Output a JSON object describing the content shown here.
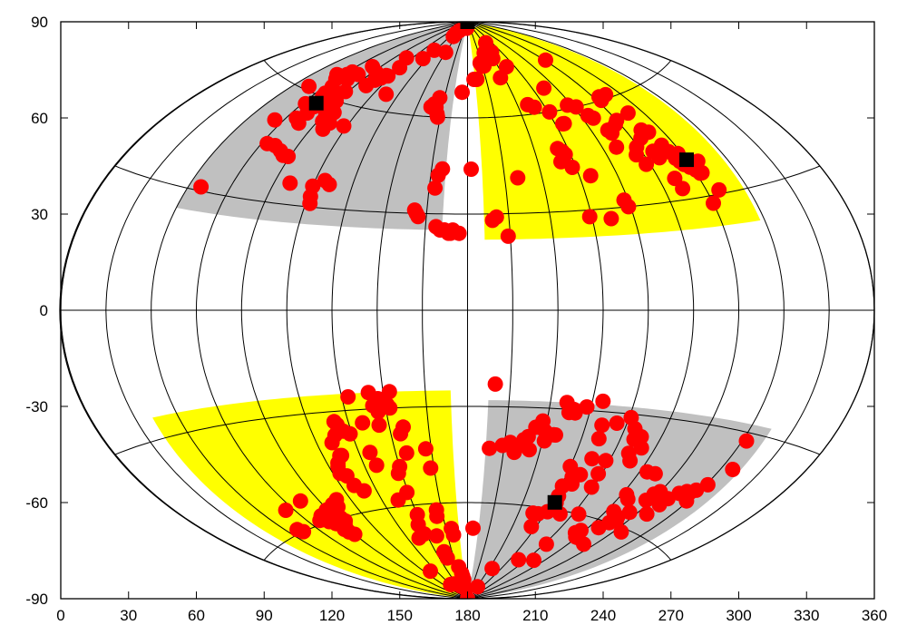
{
  "chart_data": {
    "type": "scatter",
    "title": "",
    "xlabel": "",
    "ylabel": "",
    "projection": "aitoff-hammer-ellipse",
    "xlim": [
      0,
      360
    ],
    "ylim": [
      -90,
      90
    ],
    "xticks": [
      "0",
      "30",
      "60",
      "90",
      "120",
      "150",
      "180",
      "210",
      "240",
      "270",
      "300",
      "330",
      "360"
    ],
    "yticks": [
      "-90",
      "-60",
      "-30",
      "0",
      "30",
      "60",
      "90"
    ],
    "colors": {
      "gray_region": "#c0c0c0",
      "yellow_region": "#ffff00",
      "points": "#ff0000",
      "markers": "#000000",
      "grid": "#000000"
    },
    "regions": [
      {
        "name": "upper-left",
        "color": "gray",
        "lon": [
          40,
          168
        ],
        "lat": [
          25,
          88
        ]
      },
      {
        "name": "upper-right",
        "color": "yellow",
        "lon": [
          188,
          318
        ],
        "lat": [
          22,
          88
        ]
      },
      {
        "name": "lower-left",
        "color": "yellow",
        "lon": [
          28,
          172
        ],
        "lat": [
          -88,
          -25
        ]
      },
      {
        "name": "lower-right",
        "color": "gray",
        "lon": [
          190,
          330
        ],
        "lat": [
          -88,
          -28
        ]
      }
    ],
    "series": [
      {
        "name": "red-points",
        "points": [
          [
            46,
            31
          ],
          [
            50,
            61
          ],
          [
            55,
            51
          ],
          [
            56,
            66
          ],
          [
            58,
            66
          ],
          [
            60,
            65
          ],
          [
            62,
            57
          ],
          [
            63,
            67
          ],
          [
            64,
            68
          ],
          [
            65,
            63
          ],
          [
            66,
            61
          ],
          [
            66,
            53
          ],
          [
            67,
            60
          ],
          [
            68,
            66
          ],
          [
            69,
            57
          ],
          [
            69,
            55
          ],
          [
            70,
            52
          ],
          [
            71,
            68
          ],
          [
            72,
            62
          ],
          [
            63,
            45
          ],
          [
            68,
            45
          ],
          [
            73,
            44
          ],
          [
            76,
            43
          ],
          [
            79,
            43
          ],
          [
            73,
            71
          ],
          [
            76,
            58
          ],
          [
            78,
            63
          ],
          [
            79,
            60
          ],
          [
            81,
            56
          ],
          [
            83,
            54
          ],
          [
            84,
            55
          ],
          [
            85,
            57
          ],
          [
            87,
            52
          ],
          [
            88,
            54
          ],
          [
            88,
            36
          ],
          [
            83,
            70
          ],
          [
            88,
            66
          ],
          [
            90,
            68
          ],
          [
            93,
            69
          ],
          [
            95,
            70
          ],
          [
            97,
            70
          ],
          [
            93,
            76
          ],
          [
            98,
            54
          ],
          [
            100,
            36
          ],
          [
            101,
            33
          ],
          [
            102,
            31
          ],
          [
            99,
            73
          ],
          [
            105,
            38
          ],
          [
            108,
            37
          ],
          [
            110,
            65
          ],
          [
            114,
            77
          ],
          [
            118,
            80
          ],
          [
            129,
            86
          ],
          [
            130,
            85
          ],
          [
            134,
            87
          ],
          [
            140,
            80
          ],
          [
            151,
            63
          ],
          [
            153,
            64
          ],
          [
            155,
            63
          ],
          [
            156,
            66
          ],
          [
            157,
            61
          ],
          [
            158,
            60
          ],
          [
            154,
            31
          ],
          [
            155,
            30
          ],
          [
            156,
            29
          ],
          [
            163,
            38
          ],
          [
            164,
            42
          ],
          [
            166,
            44
          ],
          [
            165,
            26
          ],
          [
            167,
            25
          ],
          [
            169,
            25
          ],
          [
            171,
            24
          ],
          [
            172,
            24
          ],
          [
            173,
            25
          ],
          [
            176,
            24
          ],
          [
            174,
            88
          ],
          [
            175,
            68
          ],
          [
            182,
            44
          ],
          [
            187,
            72
          ],
          [
            190,
            72
          ],
          [
            192,
            28
          ],
          [
            194,
            29
          ],
          [
            199,
            23
          ],
          [
            198,
            77
          ],
          [
            200,
            76
          ],
          [
            202,
            76
          ],
          [
            207,
            41
          ],
          [
            210,
            80
          ],
          [
            213,
            79
          ],
          [
            216,
            72
          ],
          [
            219,
            78
          ],
          [
            224,
            80
          ],
          [
            226,
            83
          ],
          [
            228,
            63
          ],
          [
            230,
            75
          ],
          [
            232,
            62
          ],
          [
            233,
            45
          ],
          [
            234,
            49
          ],
          [
            236,
            48
          ],
          [
            237,
            47
          ],
          [
            238,
            43
          ],
          [
            239,
            28
          ],
          [
            241,
            60
          ],
          [
            245,
            56
          ],
          [
            246,
            56
          ],
          [
            246,
            40
          ],
          [
            249,
            27
          ],
          [
            250,
            67
          ],
          [
            257,
            61
          ],
          [
            258,
            32
          ],
          [
            259,
            30
          ],
          [
            262,
            60
          ],
          [
            265,
            57
          ],
          [
            267,
            56
          ],
          [
            268,
            47
          ],
          [
            270,
            52
          ],
          [
            271,
            51
          ],
          [
            276,
            44
          ],
          [
            277,
            53
          ],
          [
            278,
            41
          ],
          [
            279,
            46
          ],
          [
            280,
            54
          ],
          [
            281,
            74
          ],
          [
            283,
            60
          ],
          [
            284,
            61
          ],
          [
            285,
            48
          ],
          [
            286,
            44
          ],
          [
            287,
            42
          ],
          [
            288,
            36
          ],
          [
            289,
            50
          ],
          [
            289,
            33
          ],
          [
            290,
            61
          ],
          [
            291,
            55
          ],
          [
            292,
            49
          ],
          [
            293,
            45
          ],
          [
            294,
            43
          ],
          [
            295,
            41
          ],
          [
            296,
            40
          ],
          [
            297,
            39
          ],
          [
            298,
            42
          ],
          [
            299,
            38
          ],
          [
            300,
            28
          ],
          [
            301,
            37
          ],
          [
            302,
            36
          ],
          [
            303,
            36
          ],
          [
            306,
            31
          ],
          [
            305,
            39
          ],
          [
            47,
            -59
          ],
          [
            49,
            -60
          ],
          [
            55,
            -54
          ],
          [
            69,
            -53
          ],
          [
            68,
            -59
          ],
          [
            70,
            -59
          ],
          [
            72,
            -58
          ],
          [
            73,
            -60
          ],
          [
            75,
            -58
          ],
          [
            76,
            -61
          ],
          [
            77,
            -63
          ],
          [
            78,
            -64
          ],
          [
            79,
            -57
          ],
          [
            80,
            -65
          ],
          [
            81,
            -62
          ],
          [
            82,
            -59
          ],
          [
            83,
            -60
          ],
          [
            84,
            -61
          ],
          [
            86,
            -56
          ],
          [
            88,
            -57
          ],
          [
            91,
            -55
          ],
          [
            104,
            -48
          ],
          [
            105,
            -46
          ],
          [
            106,
            -45
          ],
          [
            107,
            -49
          ],
          [
            108,
            -52
          ],
          [
            108,
            -39
          ],
          [
            109,
            -43
          ],
          [
            110,
            -43
          ],
          [
            110,
            -80
          ],
          [
            111,
            -37
          ],
          [
            112,
            -54
          ],
          [
            113,
            -33
          ],
          [
            114,
            -34
          ],
          [
            116,
            -36
          ],
          [
            119,
            -37
          ],
          [
            120,
            -85
          ],
          [
            123,
            -26
          ],
          [
            126,
            -43
          ],
          [
            127,
            -47
          ],
          [
            127,
            -34
          ],
          [
            130,
            -85
          ],
          [
            131,
            -70
          ],
          [
            131,
            -58
          ],
          [
            133,
            -25
          ],
          [
            134,
            -29
          ],
          [
            135,
            -35
          ],
          [
            136,
            -31
          ],
          [
            137,
            -27
          ],
          [
            137,
            -66
          ],
          [
            138,
            -69
          ],
          [
            138,
            -50
          ],
          [
            139,
            -56
          ],
          [
            140,
            -48
          ],
          [
            140,
            -63
          ],
          [
            141,
            -29
          ],
          [
            142,
            -30
          ],
          [
            143,
            -25
          ],
          [
            145,
            -38
          ],
          [
            146,
            -44
          ],
          [
            147,
            -36
          ],
          [
            149,
            -70
          ],
          [
            150,
            -75
          ],
          [
            151,
            -77
          ],
          [
            152,
            -86
          ],
          [
            155,
            -64
          ],
          [
            156,
            -62
          ],
          [
            157,
            -43
          ],
          [
            158,
            -49
          ],
          [
            164,
            -80
          ],
          [
            165,
            -68
          ],
          [
            166,
            -70
          ],
          [
            167,
            -82
          ],
          [
            168,
            -83
          ],
          [
            169,
            -84
          ],
          [
            170,
            -87
          ],
          [
            193,
            -23
          ],
          [
            192,
            -43
          ],
          [
            185,
            -68
          ],
          [
            199,
            -42
          ],
          [
            203,
            -41
          ],
          [
            206,
            -44
          ],
          [
            208,
            -42
          ],
          [
            210,
            -40
          ],
          [
            212,
            -39
          ],
          [
            214,
            -43
          ],
          [
            215,
            -36
          ],
          [
            218,
            -34
          ],
          [
            220,
            -37
          ],
          [
            221,
            -40
          ],
          [
            221,
            -90
          ],
          [
            223,
            -86
          ],
          [
            225,
            -80
          ],
          [
            225,
            -38
          ],
          [
            226,
            -38
          ],
          [
            228,
            -28
          ],
          [
            230,
            -31
          ],
          [
            231,
            -62
          ],
          [
            232,
            -30
          ],
          [
            233,
            -31
          ],
          [
            235,
            -62
          ],
          [
            236,
            -66
          ],
          [
            238,
            -29
          ],
          [
            240,
            -47
          ],
          [
            241,
            -53
          ],
          [
            241,
            -61
          ],
          [
            242,
            -56
          ],
          [
            243,
            -58
          ],
          [
            244,
            -50
          ],
          [
            245,
            -27
          ],
          [
            246,
            -52
          ],
          [
            248,
            -49
          ],
          [
            248,
            -34
          ],
          [
            249,
            -38
          ],
          [
            250,
            -44
          ],
          [
            251,
            -61
          ],
          [
            251,
            -76
          ],
          [
            255,
            -33
          ],
          [
            258,
            -48
          ],
          [
            258,
            -44
          ],
          [
            259,
            -52
          ],
          [
            261,
            -31
          ],
          [
            262,
            -70
          ],
          [
            264,
            -60
          ],
          [
            265,
            -34
          ],
          [
            267,
            -37
          ],
          [
            268,
            -41
          ],
          [
            269,
            -75
          ],
          [
            270,
            -36
          ],
          [
            271,
            -43
          ],
          [
            273,
            -39
          ],
          [
            275,
            -65
          ],
          [
            277,
            -64
          ],
          [
            279,
            -66
          ],
          [
            281,
            -66
          ],
          [
            283,
            -52
          ],
          [
            284,
            -45
          ],
          [
            285,
            -57
          ],
          [
            286,
            -53
          ],
          [
            287,
            -62
          ],
          [
            289,
            -45
          ],
          [
            290,
            -60
          ],
          [
            291,
            -58
          ],
          [
            292,
            -67
          ],
          [
            293,
            -59
          ],
          [
            295,
            -56
          ],
          [
            297,
            -52
          ],
          [
            298,
            -50
          ],
          [
            300,
            -49
          ],
          [
            305,
            -61
          ],
          [
            306,
            -55
          ],
          [
            307,
            -52
          ],
          [
            308,
            -50
          ],
          [
            311,
            -48
          ],
          [
            314,
            -47
          ],
          [
            316,
            -47
          ],
          [
            318,
            -46
          ],
          [
            319,
            -49
          ],
          [
            321,
            -44
          ],
          [
            322,
            -32
          ],
          [
            326,
            -39
          ]
        ]
      },
      {
        "name": "black-squares",
        "points": [
          [
            68,
            58
          ],
          [
            175,
            90
          ],
          [
            300,
            40
          ],
          [
            242,
            -58
          ]
        ]
      }
    ]
  }
}
